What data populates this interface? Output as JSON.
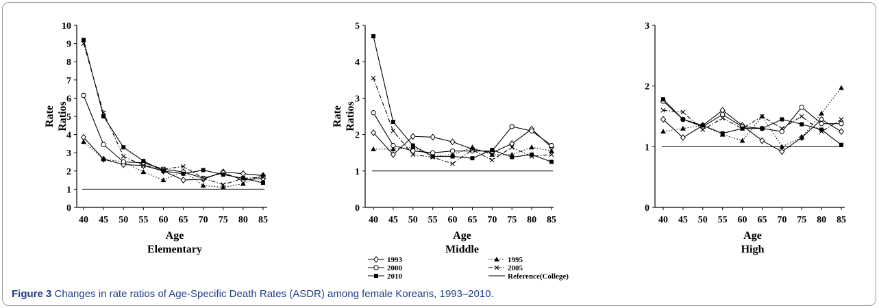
{
  "caption": {
    "label": "Figure 3",
    "text": "Changes in rate ratios of Age-Specific Death Rates (ASDR) among female Koreans, 1993–2010."
  },
  "chart_data": [
    {
      "type": "line",
      "title": "Elementary",
      "xlabel": "Age",
      "ylabel": [
        "Rate",
        "Ratios"
      ],
      "x": [
        40,
        45,
        50,
        55,
        60,
        65,
        70,
        75,
        80,
        85
      ],
      "ylim": [
        0,
        10
      ],
      "yticks": [
        0,
        1,
        2,
        3,
        4,
        5,
        6,
        7,
        8,
        9,
        10
      ],
      "reference": 1,
      "series": [
        {
          "name": "1993",
          "marker": "diamond",
          "dash": "solid",
          "values": [
            3.85,
            2.65,
            2.35,
            2.3,
            2.0,
            1.5,
            1.55,
            1.95,
            1.85,
            1.75
          ]
        },
        {
          "name": "1995",
          "marker": "triangle",
          "dash": "dotted",
          "values": [
            3.6,
            2.65,
            2.5,
            1.95,
            1.5,
            2.0,
            1.2,
            1.1,
            1.3,
            1.8
          ]
        },
        {
          "name": "2000",
          "marker": "circle",
          "dash": "solid",
          "values": [
            6.15,
            3.45,
            2.5,
            2.45,
            2.1,
            1.95,
            1.6,
            1.9,
            1.5,
            1.6
          ]
        },
        {
          "name": "2005",
          "marker": "cross",
          "dash": "dashdot",
          "values": [
            9.0,
            5.2,
            2.8,
            2.3,
            2.1,
            2.25,
            1.6,
            1.25,
            1.6,
            1.65
          ]
        },
        {
          "name": "2010",
          "marker": "square",
          "dash": "solid",
          "values": [
            9.2,
            5.0,
            3.3,
            2.55,
            2.0,
            1.85,
            2.05,
            1.8,
            1.6,
            1.35
          ]
        }
      ]
    },
    {
      "type": "line",
      "title": "Middle",
      "xlabel": "Age",
      "ylabel": [
        "Rate",
        "Ratios"
      ],
      "x": [
        40,
        45,
        50,
        55,
        60,
        65,
        70,
        75,
        80,
        85
      ],
      "ylim": [
        0,
        5
      ],
      "yticks": [
        0,
        1,
        2,
        3,
        4,
        5
      ],
      "reference": 1,
      "series": [
        {
          "name": "1993",
          "marker": "diamond",
          "dash": "solid",
          "values": [
            2.05,
            1.45,
            1.95,
            1.93,
            1.8,
            1.6,
            1.5,
            1.75,
            2.15,
            1.65
          ]
        },
        {
          "name": "1995",
          "marker": "triangle",
          "dash": "dotted",
          "values": [
            1.6,
            1.6,
            1.65,
            1.4,
            1.45,
            1.65,
            1.45,
            1.45,
            1.65,
            1.55
          ]
        },
        {
          "name": "2000",
          "marker": "circle",
          "dash": "solid",
          "values": [
            2.6,
            1.7,
            1.55,
            1.5,
            1.55,
            1.55,
            1.55,
            2.22,
            2.1,
            1.7
          ]
        },
        {
          "name": "2005",
          "marker": "cross",
          "dash": "dashdot",
          "values": [
            3.55,
            2.1,
            1.45,
            1.38,
            1.2,
            1.58,
            1.3,
            1.65,
            1.4,
            1.45
          ]
        },
        {
          "name": "2010",
          "marker": "square",
          "dash": "solid",
          "values": [
            4.7,
            2.35,
            1.7,
            1.4,
            1.4,
            1.35,
            1.58,
            1.38,
            1.45,
            1.25
          ]
        }
      ]
    },
    {
      "type": "line",
      "title": "High",
      "xlabel": "Age",
      "ylabel": [],
      "x": [
        40,
        45,
        50,
        55,
        60,
        65,
        70,
        75,
        80,
        85
      ],
      "ylim": [
        0,
        3
      ],
      "yticks": [
        0,
        1,
        2,
        3
      ],
      "reference": 1,
      "series": [
        {
          "name": "1993",
          "marker": "diamond",
          "dash": "solid",
          "values": [
            1.45,
            1.15,
            1.35,
            1.6,
            1.35,
            1.1,
            0.92,
            1.15,
            1.45,
            1.25
          ]
        },
        {
          "name": "1995",
          "marker": "triangle",
          "dash": "dotted",
          "values": [
            1.25,
            1.3,
            1.35,
            1.2,
            1.1,
            1.5,
            1.0,
            1.15,
            1.55,
            1.97
          ]
        },
        {
          "name": "2000",
          "marker": "circle",
          "dash": "solid",
          "values": [
            1.75,
            1.45,
            1.33,
            1.53,
            1.33,
            1.3,
            1.25,
            1.65,
            1.38,
            1.38
          ]
        },
        {
          "name": "2005",
          "marker": "cross",
          "dash": "dashdot",
          "values": [
            1.6,
            1.57,
            1.28,
            1.47,
            1.3,
            1.5,
            1.3,
            1.5,
            1.25,
            1.45
          ]
        },
        {
          "name": "2010",
          "marker": "square",
          "dash": "solid",
          "values": [
            1.78,
            1.45,
            1.35,
            1.22,
            1.3,
            1.3,
            1.45,
            1.37,
            1.28,
            1.03
          ]
        }
      ]
    }
  ],
  "legend": {
    "entries": [
      {
        "label": "1993",
        "marker": "diamond",
        "dash": "solid"
      },
      {
        "label": "1995",
        "marker": "triangle",
        "dash": "dotted"
      },
      {
        "label": "2000",
        "marker": "circle",
        "dash": "solid"
      },
      {
        "label": "2005",
        "marker": "cross",
        "dash": "dashdot"
      },
      {
        "label": "2010",
        "marker": "square",
        "dash": "solid"
      },
      {
        "label": "Reference(College)",
        "marker": "none",
        "dash": "solid"
      }
    ]
  }
}
